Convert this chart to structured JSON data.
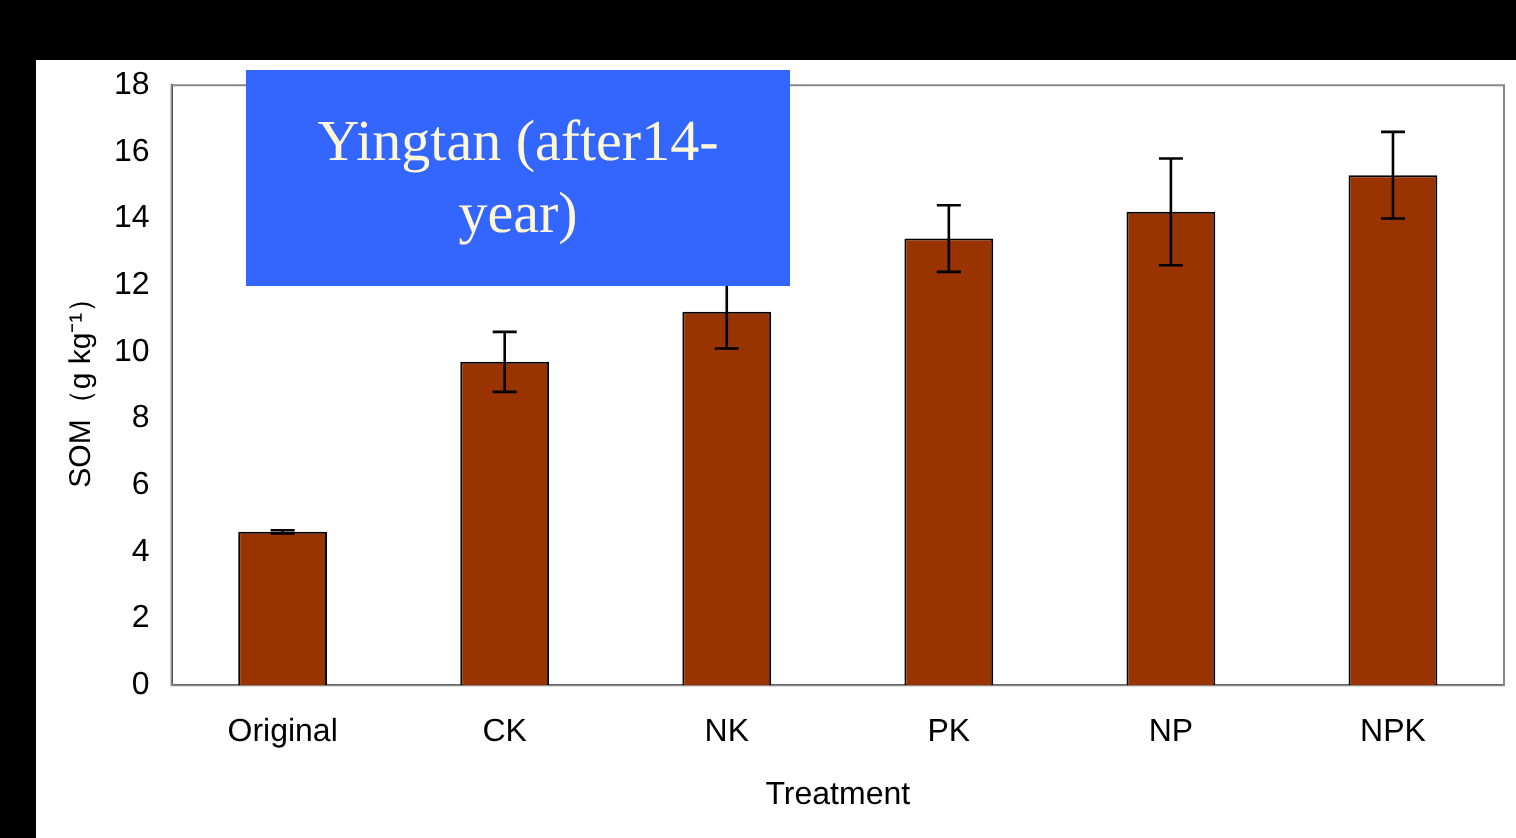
{
  "chart_data": {
    "type": "bar",
    "xlabel": "Treatment",
    "ylabel": "SOM（g kg⁻¹）",
    "categories": [
      "Original",
      "CK",
      "NK",
      "PK",
      "NP",
      "NPK"
    ],
    "values": [
      4.6,
      9.7,
      11.2,
      13.4,
      14.2,
      15.3
    ],
    "errors": [
      0.05,
      0.9,
      1.1,
      1.0,
      1.6,
      1.3
    ],
    "color": "#993300",
    "ylim": [
      0,
      18
    ],
    "yticks": [
      0,
      2,
      4,
      6,
      8,
      10,
      12,
      14,
      16,
      18
    ],
    "grid": false,
    "annotations": [
      "Yingtan (after14-year)"
    ]
  }
}
